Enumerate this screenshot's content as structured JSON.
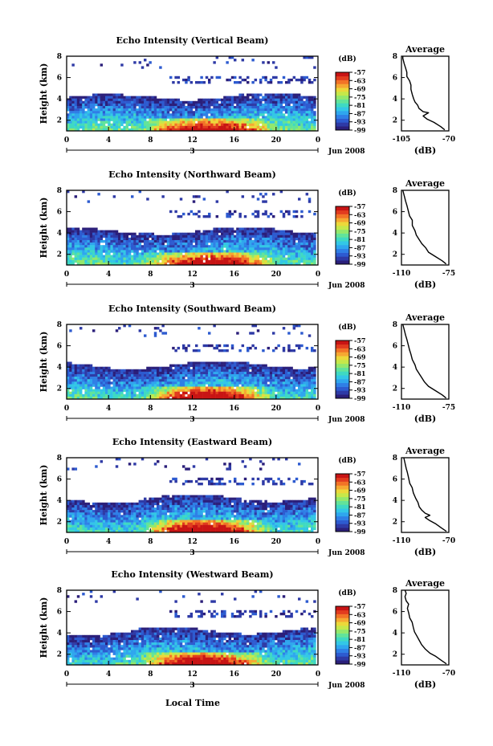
{
  "figure": {
    "date_label": "Jun 2008",
    "xlabel": "Local Time",
    "colorbar_unit": "(dB)",
    "avg_title": "Average",
    "avg_xlabel": "(dB)",
    "colormap": [
      "#2b1f7a",
      "#2e3aa6",
      "#2d5bd0",
      "#2f7fe6",
      "#2fa6ee",
      "#33c7e6",
      "#3fd9c2",
      "#62e39a",
      "#93e86c",
      "#c6e84a",
      "#ecd83a",
      "#f6a832",
      "#f27327",
      "#e23b1e",
      "#c81414"
    ]
  },
  "chart_data": [
    {
      "type": "heatmap",
      "title": "Echo Intensity (Vertical Beam)",
      "ylabel": "Height (km)",
      "x_ticks": [
        "0",
        "4",
        "8",
        "12",
        "16",
        "20",
        "0"
      ],
      "x_day": "3",
      "xlim": [
        0,
        24
      ],
      "y_ticks": [
        "2",
        "4",
        "6",
        "8"
      ],
      "ylim": [
        1,
        8
      ],
      "colorbar_ticks": [
        "-57",
        "-63",
        "-69",
        "-75",
        "-81",
        "-87",
        "-93",
        "-99"
      ],
      "colorbar_range": [
        -99,
        -57
      ],
      "avg": {
        "xlim": [
          -105,
          -70
        ],
        "x_ticks": [
          "-105",
          "-70"
        ],
        "y_ticks": [
          "2",
          "4",
          "6",
          "8"
        ],
        "ylim": [
          1,
          8
        ],
        "profile": [
          [
            -73,
            1.1
          ],
          [
            -76,
            1.4
          ],
          [
            -81,
            1.8
          ],
          [
            -86,
            2.1
          ],
          [
            -89,
            2.4
          ],
          [
            -85,
            2.7
          ],
          [
            -89,
            2.8
          ],
          [
            -92,
            3.1
          ],
          [
            -93,
            3.4
          ],
          [
            -95,
            3.7
          ],
          [
            -96,
            4.0
          ],
          [
            -97,
            4.4
          ],
          [
            -98,
            4.9
          ],
          [
            -98,
            5.3
          ],
          [
            -99,
            5.7
          ],
          [
            -101,
            6.1
          ],
          [
            -101,
            6.5
          ],
          [
            -102,
            6.9
          ],
          [
            -103,
            7.3
          ],
          [
            -104,
            7.8
          ],
          [
            -104,
            8.0
          ]
        ]
      }
    },
    {
      "type": "heatmap",
      "title": "Echo Intensity (Northward Beam)",
      "ylabel": "Height (km)",
      "x_ticks": [
        "0",
        "4",
        "8",
        "12",
        "16",
        "20",
        "0"
      ],
      "x_day": "3",
      "xlim": [
        0,
        24
      ],
      "y_ticks": [
        "2",
        "4",
        "6",
        "8"
      ],
      "ylim": [
        1,
        8
      ],
      "colorbar_ticks": [
        "-57",
        "-63",
        "-69",
        "-75",
        "-81",
        "-87",
        "-93",
        "-99"
      ],
      "colorbar_range": [
        -99,
        -57
      ],
      "avg": {
        "xlim": [
          -110,
          -75
        ],
        "x_ticks": [
          "-110",
          "-75"
        ],
        "y_ticks": [
          "2",
          "4",
          "6",
          "8"
        ],
        "ylim": [
          1,
          8
        ],
        "profile": [
          [
            -77,
            1.1
          ],
          [
            -80,
            1.4
          ],
          [
            -85,
            1.8
          ],
          [
            -90,
            2.2
          ],
          [
            -92,
            2.6
          ],
          [
            -95,
            3.0
          ],
          [
            -97,
            3.4
          ],
          [
            -99,
            3.8
          ],
          [
            -100,
            4.2
          ],
          [
            -102,
            4.7
          ],
          [
            -102,
            5.2
          ],
          [
            -104,
            5.6
          ],
          [
            -105,
            6.1
          ],
          [
            -106,
            6.6
          ],
          [
            -107,
            7.0
          ],
          [
            -108,
            7.5
          ],
          [
            -109,
            8.0
          ]
        ]
      }
    },
    {
      "type": "heatmap",
      "title": "Echo Intensity (Southward Beam)",
      "ylabel": "Height (km)",
      "x_ticks": [
        "0",
        "4",
        "8",
        "12",
        "16",
        "20",
        "0"
      ],
      "x_day": "3",
      "xlim": [
        0,
        24
      ],
      "y_ticks": [
        "2",
        "4",
        "6",
        "8"
      ],
      "ylim": [
        1,
        8
      ],
      "colorbar_ticks": [
        "-57",
        "-63",
        "-69",
        "-75",
        "-81",
        "-87",
        "-93",
        "-99"
      ],
      "colorbar_range": [
        -99,
        -57
      ],
      "avg": {
        "xlim": [
          -110,
          -75
        ],
        "x_ticks": [
          "-110",
          "-75"
        ],
        "y_ticks": [
          "2",
          "4",
          "6",
          "8"
        ],
        "ylim": [
          1,
          8
        ],
        "profile": [
          [
            -77,
            1.1
          ],
          [
            -80,
            1.4
          ],
          [
            -85,
            1.8
          ],
          [
            -90,
            2.2
          ],
          [
            -93,
            2.6
          ],
          [
            -95,
            3.0
          ],
          [
            -97,
            3.4
          ],
          [
            -99,
            3.8
          ],
          [
            -100,
            4.2
          ],
          [
            -102,
            4.7
          ],
          [
            -103,
            5.2
          ],
          [
            -104,
            5.6
          ],
          [
            -105,
            6.1
          ],
          [
            -106,
            6.6
          ],
          [
            -107,
            7.0
          ],
          [
            -108,
            7.5
          ],
          [
            -109,
            8.0
          ]
        ]
      }
    },
    {
      "type": "heatmap",
      "title": "Echo Intensity (Eastward Beam)",
      "ylabel": "Height (km)",
      "x_ticks": [
        "0",
        "4",
        "8",
        "12",
        "16",
        "20",
        "0"
      ],
      "x_day": "3",
      "xlim": [
        0,
        24
      ],
      "y_ticks": [
        "2",
        "4",
        "6",
        "8"
      ],
      "ylim": [
        1,
        8
      ],
      "colorbar_ticks": [
        "-57",
        "-63",
        "-69",
        "-75",
        "-81",
        "-87",
        "-93",
        "-99"
      ],
      "colorbar_range": [
        -99,
        -57
      ],
      "avg": {
        "xlim": [
          -110,
          -70
        ],
        "x_ticks": [
          "-110",
          "-70"
        ],
        "y_ticks": [
          "2",
          "4",
          "6",
          "8"
        ],
        "ylim": [
          1,
          8
        ],
        "profile": [
          [
            -72,
            1.1
          ],
          [
            -76,
            1.4
          ],
          [
            -81,
            1.8
          ],
          [
            -86,
            2.1
          ],
          [
            -90,
            2.4
          ],
          [
            -86,
            2.6
          ],
          [
            -90,
            2.8
          ],
          [
            -93,
            3.1
          ],
          [
            -95,
            3.4
          ],
          [
            -96,
            3.8
          ],
          [
            -98,
            4.2
          ],
          [
            -100,
            4.7
          ],
          [
            -101,
            5.2
          ],
          [
            -103,
            5.6
          ],
          [
            -104,
            6.1
          ],
          [
            -105,
            6.6
          ],
          [
            -106,
            7.0
          ],
          [
            -107,
            7.5
          ],
          [
            -108,
            8.0
          ]
        ]
      }
    },
    {
      "type": "heatmap",
      "title": "Echo Intensity (Westward Beam)",
      "ylabel": "Height (km)",
      "x_ticks": [
        "0",
        "4",
        "8",
        "12",
        "16",
        "20",
        "0"
      ],
      "x_day": "3",
      "xlim": [
        0,
        24
      ],
      "y_ticks": [
        "2",
        "4",
        "6",
        "8"
      ],
      "ylim": [
        1,
        8
      ],
      "colorbar_ticks": [
        "-57",
        "-63",
        "-69",
        "-75",
        "-81",
        "-87",
        "-93",
        "-99"
      ],
      "colorbar_range": [
        -99,
        -57
      ],
      "avg": {
        "xlim": [
          -110,
          -70
        ],
        "x_ticks": [
          "-110",
          "-70"
        ],
        "y_ticks": [
          "2",
          "4",
          "6",
          "8"
        ],
        "ylim": [
          1,
          8
        ],
        "profile": [
          [
            -72,
            1.1
          ],
          [
            -76,
            1.4
          ],
          [
            -81,
            1.8
          ],
          [
            -86,
            2.1
          ],
          [
            -90,
            2.5
          ],
          [
            -93,
            2.9
          ],
          [
            -95,
            3.3
          ],
          [
            -97,
            3.7
          ],
          [
            -99,
            4.1
          ],
          [
            -100,
            4.5
          ],
          [
            -101,
            5.0
          ],
          [
            -103,
            5.4
          ],
          [
            -104,
            5.9
          ],
          [
            -105,
            6.3
          ],
          [
            -104,
            6.7
          ],
          [
            -106,
            7.0
          ],
          [
            -107,
            7.4
          ],
          [
            -106,
            7.7
          ],
          [
            -107,
            8.0
          ]
        ]
      }
    }
  ]
}
